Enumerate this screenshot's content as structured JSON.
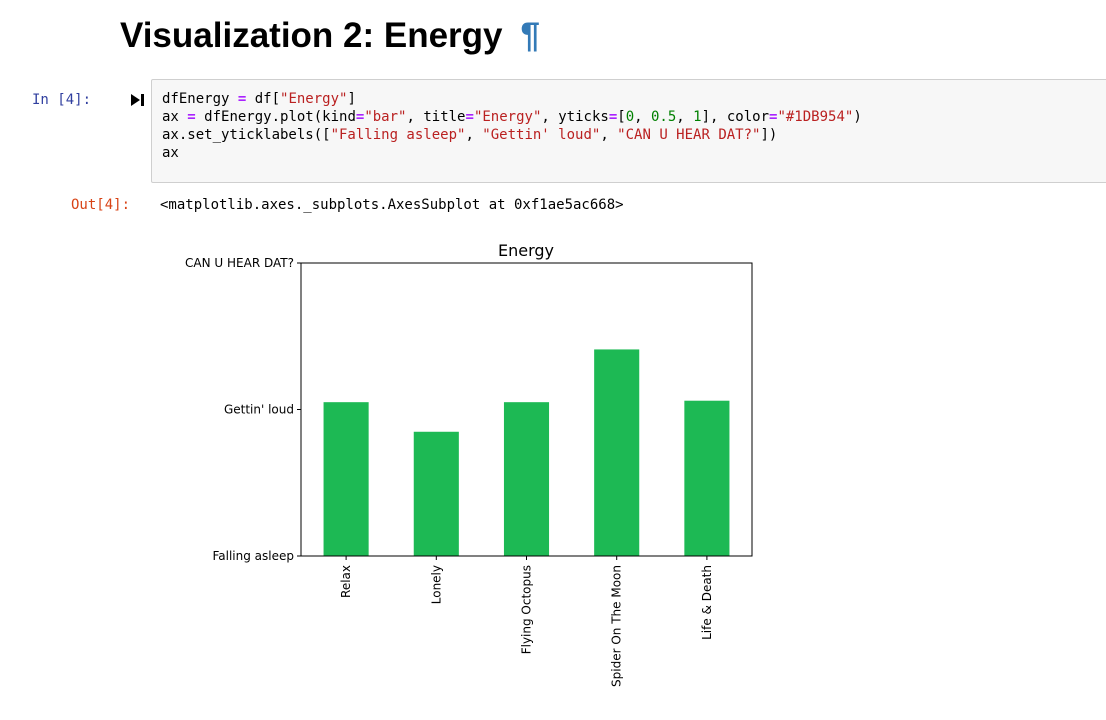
{
  "heading": {
    "title": "Visualization 2: Energy",
    "anchor": "¶",
    "anchor_color": "#337ab7"
  },
  "input_cell": {
    "prompt": "In [4]:",
    "run_icon": "run-cell-icon",
    "code_lines": [
      "dfEnergy = df[\"Energy\"]",
      "ax = dfEnergy.plot(kind=\"bar\", title=\"Energy\", yticks=[0, 0.5, 1], color=\"#1DB954\")",
      "ax.set_yticklabels([\"Falling asleep\", \"Gettin' loud\", \"CAN U HEAR DAT?\"])",
      "ax"
    ]
  },
  "output_cell": {
    "prompt": "Out[4]:",
    "text": "<matplotlib.axes._subplots.AxesSubplot at 0xf1ae5ac668>"
  },
  "chart_data": {
    "type": "bar",
    "title": "Energy",
    "xlabel": "",
    "ylabel": "",
    "categories": [
      "Relax",
      "Lonely",
      "Flying Octopus",
      "Spider On The Moon",
      "Life & Death"
    ],
    "values": [
      0.525,
      0.424,
      0.525,
      0.705,
      0.53
    ],
    "ylim": [
      0,
      1
    ],
    "yticks": [
      0,
      0.5,
      1
    ],
    "ytick_labels": [
      "Falling asleep",
      "Gettin' loud",
      "CAN U HEAR DAT?"
    ],
    "bar_color": "#1DB954",
    "grid": false,
    "legend": "none"
  }
}
